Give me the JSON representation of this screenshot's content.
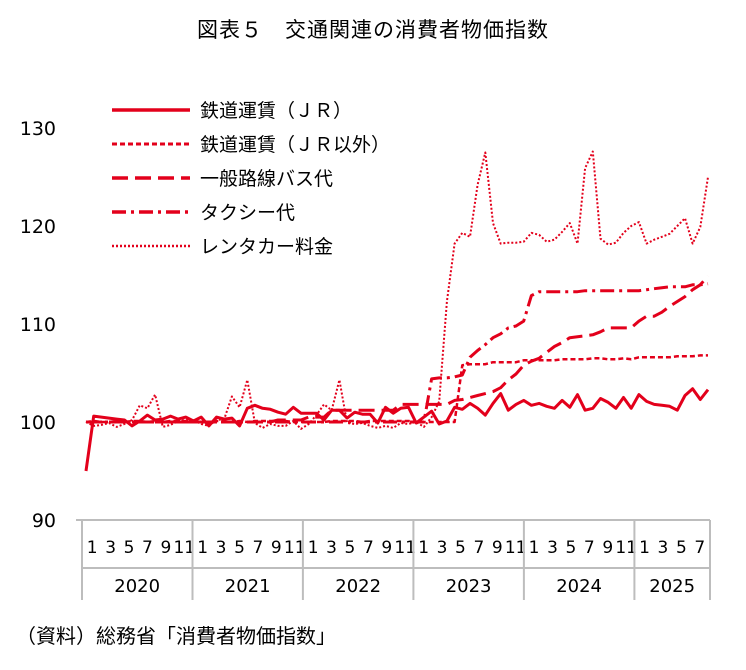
{
  "title": "図表５　交通関連の消費者物価指数",
  "source": "（資料）総務省「消費者物価指数」",
  "chart_data": {
    "type": "line",
    "ylim": [
      90,
      130
    ],
    "yticks": [
      "90",
      "100",
      "110",
      "120",
      "130"
    ],
    "x_month_ticks": [
      "1",
      "3",
      "5",
      "7",
      "9",
      "11",
      "1",
      "3",
      "5",
      "7",
      "9",
      "11",
      "1",
      "3",
      "5",
      "7",
      "9",
      "11",
      "1",
      "3",
      "5",
      "7",
      "9",
      "11",
      "1",
      "3",
      "5",
      "7",
      "9",
      "11",
      "1",
      "3",
      "5",
      "7"
    ],
    "years": [
      "2020",
      "2021",
      "2022",
      "2023",
      "2024",
      "2025"
    ],
    "grid": false,
    "legend_position": "top-left",
    "color": "#e3001b",
    "series": [
      {
        "name": "鉄道運賃（ＪＲ）",
        "style": "solid",
        "values": [
          95,
          100.6,
          100.5,
          100.4,
          100.3,
          100.2,
          99.6,
          100.1,
          100.7,
          100.2,
          100.3,
          100.6,
          100.3,
          100.5,
          100.1,
          100.5,
          99.6,
          100.5,
          100.3,
          100.4,
          99.6,
          101.4,
          101.7,
          101.4,
          101.3,
          101,
          100.8,
          101.5,
          100.9,
          100.9,
          100.9,
          100.2,
          101.2,
          101.2,
          100.4,
          101,
          100.8,
          100.8,
          99.9,
          101.5,
          100.9,
          101.4,
          101.5,
          99.9,
          100.5,
          101.1,
          99.8,
          100.1,
          101.5,
          101.3,
          101.9,
          101.4,
          100.7,
          101.9,
          102.9,
          101.2,
          101.8,
          102.2,
          101.7,
          101.9,
          101.6,
          101.4,
          102.2,
          101.5,
          102.8,
          101.2,
          101.4,
          102.4,
          102,
          101.4,
          102.5,
          101.4,
          102.8,
          102.1,
          101.8,
          101.7,
          101.6,
          101.2,
          102.7,
          103.4,
          102.3,
          103.3
        ]
      },
      {
        "name": "鉄道運賃（ＪＲ以外）",
        "style": "dotted",
        "values": [
          100,
          100.1,
          100,
          100,
          100.1,
          100,
          100.1,
          100.1,
          100,
          100.1,
          100,
          100.1,
          100.1,
          100.1,
          100.1,
          100,
          100,
          100.1,
          100.1,
          100,
          100.1,
          100,
          100.1,
          100.1,
          100.1,
          100.1,
          100.1,
          100,
          100,
          100,
          100,
          100,
          100.1,
          100.1,
          100.1,
          100.1,
          100,
          100.1,
          100.1,
          100.1,
          100.1,
          100.1,
          100.1,
          100,
          100,
          100,
          100,
          100,
          100,
          105.8,
          105.9,
          105.9,
          105.9,
          106.1,
          106.1,
          106.1,
          106.1,
          106.3,
          106.3,
          106.3,
          106.3,
          106.3,
          106.4,
          106.4,
          106.4,
          106.4,
          106.5,
          106.5,
          106.4,
          106.4,
          106.5,
          106.4,
          106.6,
          106.6,
          106.6,
          106.6,
          106.6,
          106.7,
          106.7,
          106.7,
          106.8,
          106.8
        ]
      },
      {
        "name": "一般路線バス代",
        "style": "longdash",
        "values": [
          100,
          100,
          100,
          100,
          100,
          100,
          100,
          100,
          100,
          100,
          100,
          100,
          100,
          100,
          100,
          100,
          100,
          100,
          100,
          100,
          100,
          100,
          100,
          100,
          100,
          100.2,
          100.2,
          100.2,
          100.2,
          100.5,
          100.5,
          100.5,
          101.2,
          101.2,
          101.2,
          101.2,
          101.2,
          101.2,
          101.2,
          101.2,
          101.2,
          101.8,
          101.8,
          101.8,
          101.8,
          101.8,
          101.8,
          101.8,
          102.2,
          102.3,
          102.5,
          102.7,
          102.9,
          103.1,
          103.5,
          104.3,
          104.9,
          105.8,
          106.2,
          106.5,
          107.1,
          107.7,
          108.1,
          108.6,
          108.7,
          108.8,
          108.9,
          109.2,
          109.6,
          109.6,
          109.6,
          109.6,
          110.3,
          110.8,
          110.8,
          111.2,
          111.8,
          112.3,
          112.8,
          113.5,
          114,
          114.9
        ]
      },
      {
        "name": "タクシー代",
        "style": "dashdot",
        "values": [
          100,
          100,
          100,
          100,
          100,
          100,
          100,
          100,
          100,
          100,
          100,
          100,
          100,
          100,
          100,
          100,
          100,
          100,
          100,
          100,
          100,
          100,
          100,
          100,
          100,
          100,
          100,
          100,
          100,
          100,
          100,
          100,
          100,
          100,
          100,
          100,
          100,
          100,
          100,
          100,
          100,
          100,
          100,
          100,
          100,
          104.4,
          104.5,
          104.5,
          104.6,
          104.8,
          106.6,
          107.3,
          107.9,
          108.6,
          109,
          109.6,
          109.8,
          110.3,
          112.9,
          113.3,
          113.3,
          113.3,
          113.3,
          113.3,
          113.3,
          113.4,
          113.4,
          113.4,
          113.4,
          113.4,
          113.4,
          113.4,
          113.4,
          113.5,
          113.6,
          113.7,
          113.8,
          113.8,
          113.8,
          114,
          114,
          114.1
        ]
      },
      {
        "name": "レンタカー料金",
        "style": "fine-dotted",
        "values": [
          100,
          99.6,
          99.7,
          99.9,
          99.5,
          99.8,
          100.2,
          101.7,
          101.4,
          102.8,
          99.5,
          99.7,
          100.1,
          100.2,
          100.2,
          99.8,
          99.6,
          100.2,
          100.3,
          102.6,
          101.5,
          104.3,
          99.9,
          99.4,
          99.8,
          99.6,
          99.6,
          100.1,
          99.3,
          99.8,
          100.7,
          101.8,
          101.2,
          104.3,
          99.9,
          99.8,
          99.9,
          99.6,
          99.4,
          99.6,
          99.4,
          99.9,
          99.8,
          100,
          99.5,
          100.5,
          102.1,
          112.3,
          118.2,
          119.3,
          118.9,
          124.2,
          127.5,
          120.3,
          118.2,
          118.3,
          118.3,
          118.4,
          119.3,
          119.1,
          118.4,
          118.6,
          119.4,
          120.3,
          118.2,
          125.9,
          127.6,
          118.7,
          118.1,
          118.3,
          119.3,
          120,
          120.4,
          118.2,
          118.6,
          118.9,
          119.2,
          120,
          120.8,
          118.2,
          119.9,
          125
        ]
      }
    ]
  }
}
